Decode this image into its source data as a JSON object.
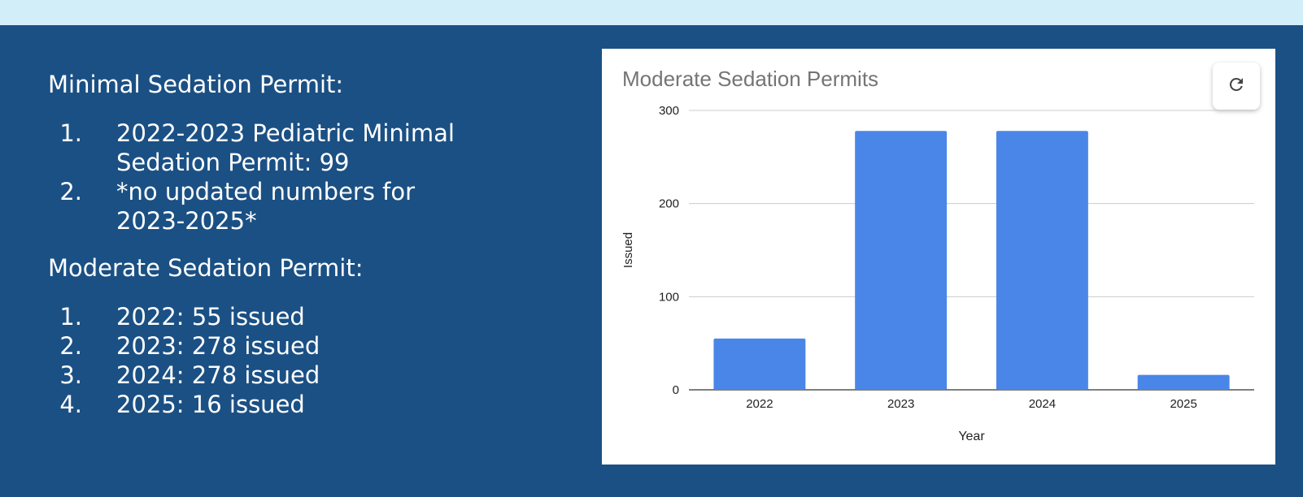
{
  "minimal": {
    "heading": "Minimal Sedation Permit:",
    "items": [
      {
        "num": "1.",
        "text": "2022-2023 Pediatric Minimal Sedation Permit: 99"
      },
      {
        "num": "2.",
        "text": "*no updated numbers for 2023-2025*"
      }
    ]
  },
  "moderate": {
    "heading": "Moderate Sedation Permit:",
    "items": [
      {
        "num": "1.",
        "text": "2022: 55 issued"
      },
      {
        "num": "2.",
        "text": "2023: 278 issued"
      },
      {
        "num": "3.",
        "text": "2024: 278 issued"
      },
      {
        "num": "4.",
        "text": "2025: 16 issued"
      }
    ]
  },
  "colors": {
    "page_background": "#1b5084",
    "top_band": "#d2eef8",
    "bar": "#4a86e8"
  },
  "icons": {
    "refresh": "refresh-icon"
  },
  "chart_data": {
    "type": "bar",
    "title": "Moderate Sedation Permits",
    "xlabel": "Year",
    "ylabel": "Issued",
    "categories": [
      "2022",
      "2023",
      "2024",
      "2025"
    ],
    "values": [
      55,
      278,
      278,
      16
    ],
    "ylim": [
      0,
      300
    ],
    "yticks": [
      0,
      100,
      200,
      300
    ],
    "grid": true,
    "legend": "none"
  }
}
